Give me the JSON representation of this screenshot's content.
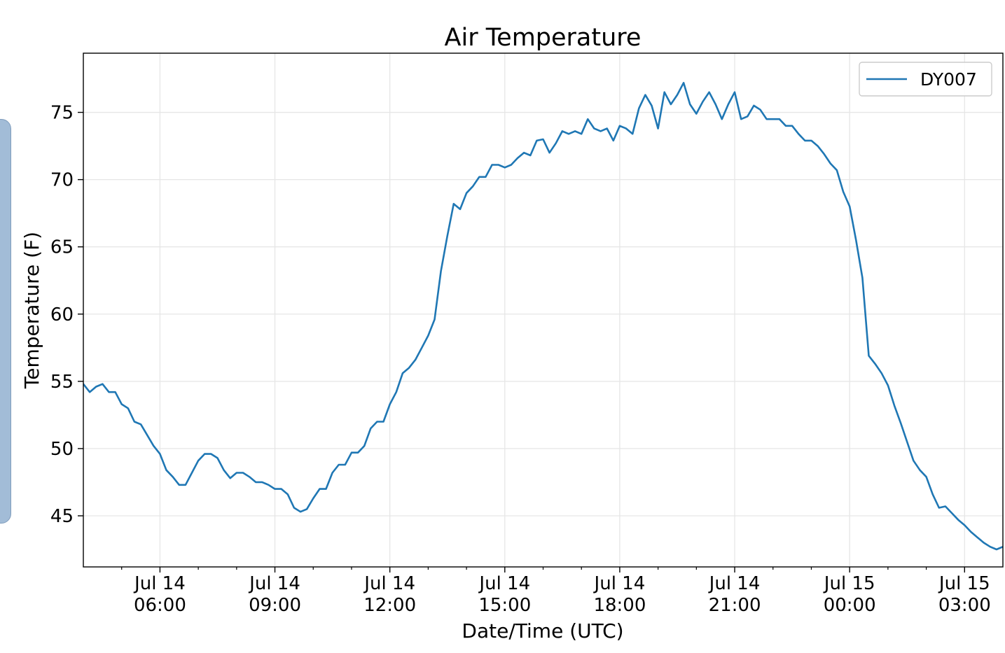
{
  "chart_data": {
    "type": "line",
    "title": "Air Temperature",
    "xlabel": "Date/Time (UTC)",
    "ylabel": "Temperature (F)",
    "ylim": [
      41.2,
      79.4
    ],
    "xlim": [
      "2018-07-14 04:00",
      "2018-07-15 04:00"
    ],
    "yticks": [
      45,
      50,
      55,
      60,
      65,
      70,
      75
    ],
    "xticks": [
      {
        "t": "2018-07-14 06:00",
        "label": [
          "Jul 14",
          "06:00"
        ]
      },
      {
        "t": "2018-07-14 09:00",
        "label": [
          "Jul 14",
          "09:00"
        ]
      },
      {
        "t": "2018-07-14 12:00",
        "label": [
          "Jul 14",
          "12:00"
        ]
      },
      {
        "t": "2018-07-14 15:00",
        "label": [
          "Jul 14",
          "15:00"
        ]
      },
      {
        "t": "2018-07-14 18:00",
        "label": [
          "Jul 14",
          "18:00"
        ]
      },
      {
        "t": "2018-07-14 21:00",
        "label": [
          "Jul 14",
          "21:00"
        ]
      },
      {
        "t": "2018-07-15 00:00",
        "label": [
          "Jul 15",
          "00:00"
        ]
      },
      {
        "t": "2018-07-15 03:00",
        "label": [
          "Jul 15",
          "03:00"
        ]
      }
    ],
    "minor_ticks": [
      "2018-07-14 05:00",
      "2018-07-14 07:00",
      "2018-07-14 08:00",
      "2018-07-14 10:00",
      "2018-07-14 11:00",
      "2018-07-14 13:00",
      "2018-07-14 14:00",
      "2018-07-14 16:00",
      "2018-07-14 17:00",
      "2018-07-14 19:00",
      "2018-07-14 20:00",
      "2018-07-14 22:00",
      "2018-07-14 23:00",
      "2018-07-15 01:00",
      "2018-07-15 02:00"
    ],
    "grid": true,
    "legend": "top-right",
    "series": [
      {
        "name": "DY007",
        "color": "#1f77b4",
        "x": [
          "2018-07-14 04:00",
          "2018-07-14 04:10",
          "2018-07-14 04:20",
          "2018-07-14 04:30",
          "2018-07-14 04:40",
          "2018-07-14 04:50",
          "2018-07-14 05:00",
          "2018-07-14 05:10",
          "2018-07-14 05:20",
          "2018-07-14 05:30",
          "2018-07-14 05:40",
          "2018-07-14 05:50",
          "2018-07-14 06:00",
          "2018-07-14 06:10",
          "2018-07-14 06:20",
          "2018-07-14 06:30",
          "2018-07-14 06:40",
          "2018-07-14 06:50",
          "2018-07-14 07:00",
          "2018-07-14 07:10",
          "2018-07-14 07:20",
          "2018-07-14 07:30",
          "2018-07-14 07:40",
          "2018-07-14 07:50",
          "2018-07-14 08:00",
          "2018-07-14 08:10",
          "2018-07-14 08:20",
          "2018-07-14 08:30",
          "2018-07-14 08:40",
          "2018-07-14 08:50",
          "2018-07-14 09:00",
          "2018-07-14 09:10",
          "2018-07-14 09:20",
          "2018-07-14 09:30",
          "2018-07-14 09:40",
          "2018-07-14 09:50",
          "2018-07-14 10:00",
          "2018-07-14 10:10",
          "2018-07-14 10:20",
          "2018-07-14 10:30",
          "2018-07-14 10:40",
          "2018-07-14 10:50",
          "2018-07-14 11:00",
          "2018-07-14 11:10",
          "2018-07-14 11:20",
          "2018-07-14 11:30",
          "2018-07-14 11:40",
          "2018-07-14 11:50",
          "2018-07-14 12:00",
          "2018-07-14 12:10",
          "2018-07-14 12:20",
          "2018-07-14 12:30",
          "2018-07-14 12:40",
          "2018-07-14 12:50",
          "2018-07-14 13:00",
          "2018-07-14 13:10",
          "2018-07-14 13:20",
          "2018-07-14 13:30",
          "2018-07-14 13:40",
          "2018-07-14 13:50",
          "2018-07-14 14:00",
          "2018-07-14 14:10",
          "2018-07-14 14:20",
          "2018-07-14 14:30",
          "2018-07-14 14:40",
          "2018-07-14 14:50",
          "2018-07-14 15:00",
          "2018-07-14 15:10",
          "2018-07-14 15:20",
          "2018-07-14 15:30",
          "2018-07-14 15:40",
          "2018-07-14 15:50",
          "2018-07-14 16:00",
          "2018-07-14 16:10",
          "2018-07-14 16:20",
          "2018-07-14 16:30",
          "2018-07-14 16:40",
          "2018-07-14 16:50",
          "2018-07-14 17:00",
          "2018-07-14 17:10",
          "2018-07-14 17:20",
          "2018-07-14 17:30",
          "2018-07-14 17:40",
          "2018-07-14 17:50",
          "2018-07-14 18:00",
          "2018-07-14 18:10",
          "2018-07-14 18:20",
          "2018-07-14 18:30",
          "2018-07-14 18:40",
          "2018-07-14 18:50",
          "2018-07-14 19:00",
          "2018-07-14 19:10",
          "2018-07-14 19:20",
          "2018-07-14 19:30",
          "2018-07-14 19:40",
          "2018-07-14 19:50",
          "2018-07-14 20:00",
          "2018-07-14 20:10",
          "2018-07-14 20:20",
          "2018-07-14 20:30",
          "2018-07-14 20:40",
          "2018-07-14 20:50",
          "2018-07-14 21:00",
          "2018-07-14 21:10",
          "2018-07-14 21:20",
          "2018-07-14 21:30",
          "2018-07-14 21:40",
          "2018-07-14 21:50",
          "2018-07-14 22:00",
          "2018-07-14 22:10",
          "2018-07-14 22:20",
          "2018-07-14 22:30",
          "2018-07-14 22:40",
          "2018-07-14 22:50",
          "2018-07-14 23:00",
          "2018-07-14 23:10",
          "2018-07-14 23:20",
          "2018-07-14 23:30",
          "2018-07-14 23:40",
          "2018-07-14 23:50",
          "2018-07-15 00:00",
          "2018-07-15 00:10",
          "2018-07-15 00:20",
          "2018-07-15 00:30",
          "2018-07-15 00:40",
          "2018-07-15 00:50",
          "2018-07-15 01:00",
          "2018-07-15 01:10",
          "2018-07-15 01:20",
          "2018-07-15 01:30",
          "2018-07-15 01:40",
          "2018-07-15 01:50",
          "2018-07-15 02:00",
          "2018-07-15 02:10",
          "2018-07-15 02:20",
          "2018-07-15 02:30",
          "2018-07-15 02:40",
          "2018-07-15 02:50",
          "2018-07-15 03:00",
          "2018-07-15 03:10",
          "2018-07-15 03:20",
          "2018-07-15 03:30",
          "2018-07-15 03:40",
          "2018-07-15 03:50",
          "2018-07-15 04:00"
        ],
        "y": [
          54.8,
          54.2,
          54.6,
          54.8,
          54.2,
          54.2,
          53.3,
          53.0,
          52.0,
          51.8,
          51.0,
          50.2,
          49.6,
          48.4,
          47.9,
          47.3,
          47.3,
          48.2,
          49.1,
          49.6,
          49.6,
          49.3,
          48.4,
          47.8,
          48.2,
          48.2,
          47.9,
          47.5,
          47.5,
          47.3,
          47.0,
          47.0,
          46.6,
          45.6,
          45.3,
          45.5,
          46.3,
          47.0,
          47.0,
          48.2,
          48.8,
          48.8,
          49.7,
          49.7,
          50.2,
          51.5,
          52.0,
          52.0,
          53.3,
          54.2,
          55.6,
          56.0,
          56.6,
          57.5,
          58.4,
          59.6,
          63.2,
          65.8,
          68.2,
          67.8,
          69.0,
          69.5,
          70.2,
          70.2,
          71.1,
          71.1,
          70.9,
          71.1,
          71.6,
          72.0,
          71.8,
          72.9,
          73.0,
          72.0,
          72.7,
          73.6,
          73.4,
          73.6,
          73.4,
          74.5,
          73.8,
          73.6,
          73.8,
          72.9,
          74.0,
          73.8,
          73.4,
          75.3,
          76.3,
          75.5,
          73.8,
          76.5,
          75.6,
          76.3,
          77.2,
          75.6,
          74.9,
          75.8,
          76.5,
          75.6,
          74.5,
          75.6,
          76.5,
          74.5,
          74.7,
          75.5,
          75.2,
          74.5,
          74.5,
          74.5,
          74.0,
          74.0,
          73.4,
          72.9,
          72.9,
          72.5,
          71.9,
          71.2,
          70.7,
          69.1,
          68.0,
          65.5,
          62.7,
          56.9,
          56.3,
          55.6,
          54.7,
          53.2,
          51.9,
          50.5,
          49.1,
          48.4,
          47.9,
          46.6,
          45.6,
          45.7,
          45.2,
          44.7,
          44.3,
          43.8,
          43.4,
          43.0,
          42.7,
          42.5,
          42.7
        ]
      }
    ]
  }
}
